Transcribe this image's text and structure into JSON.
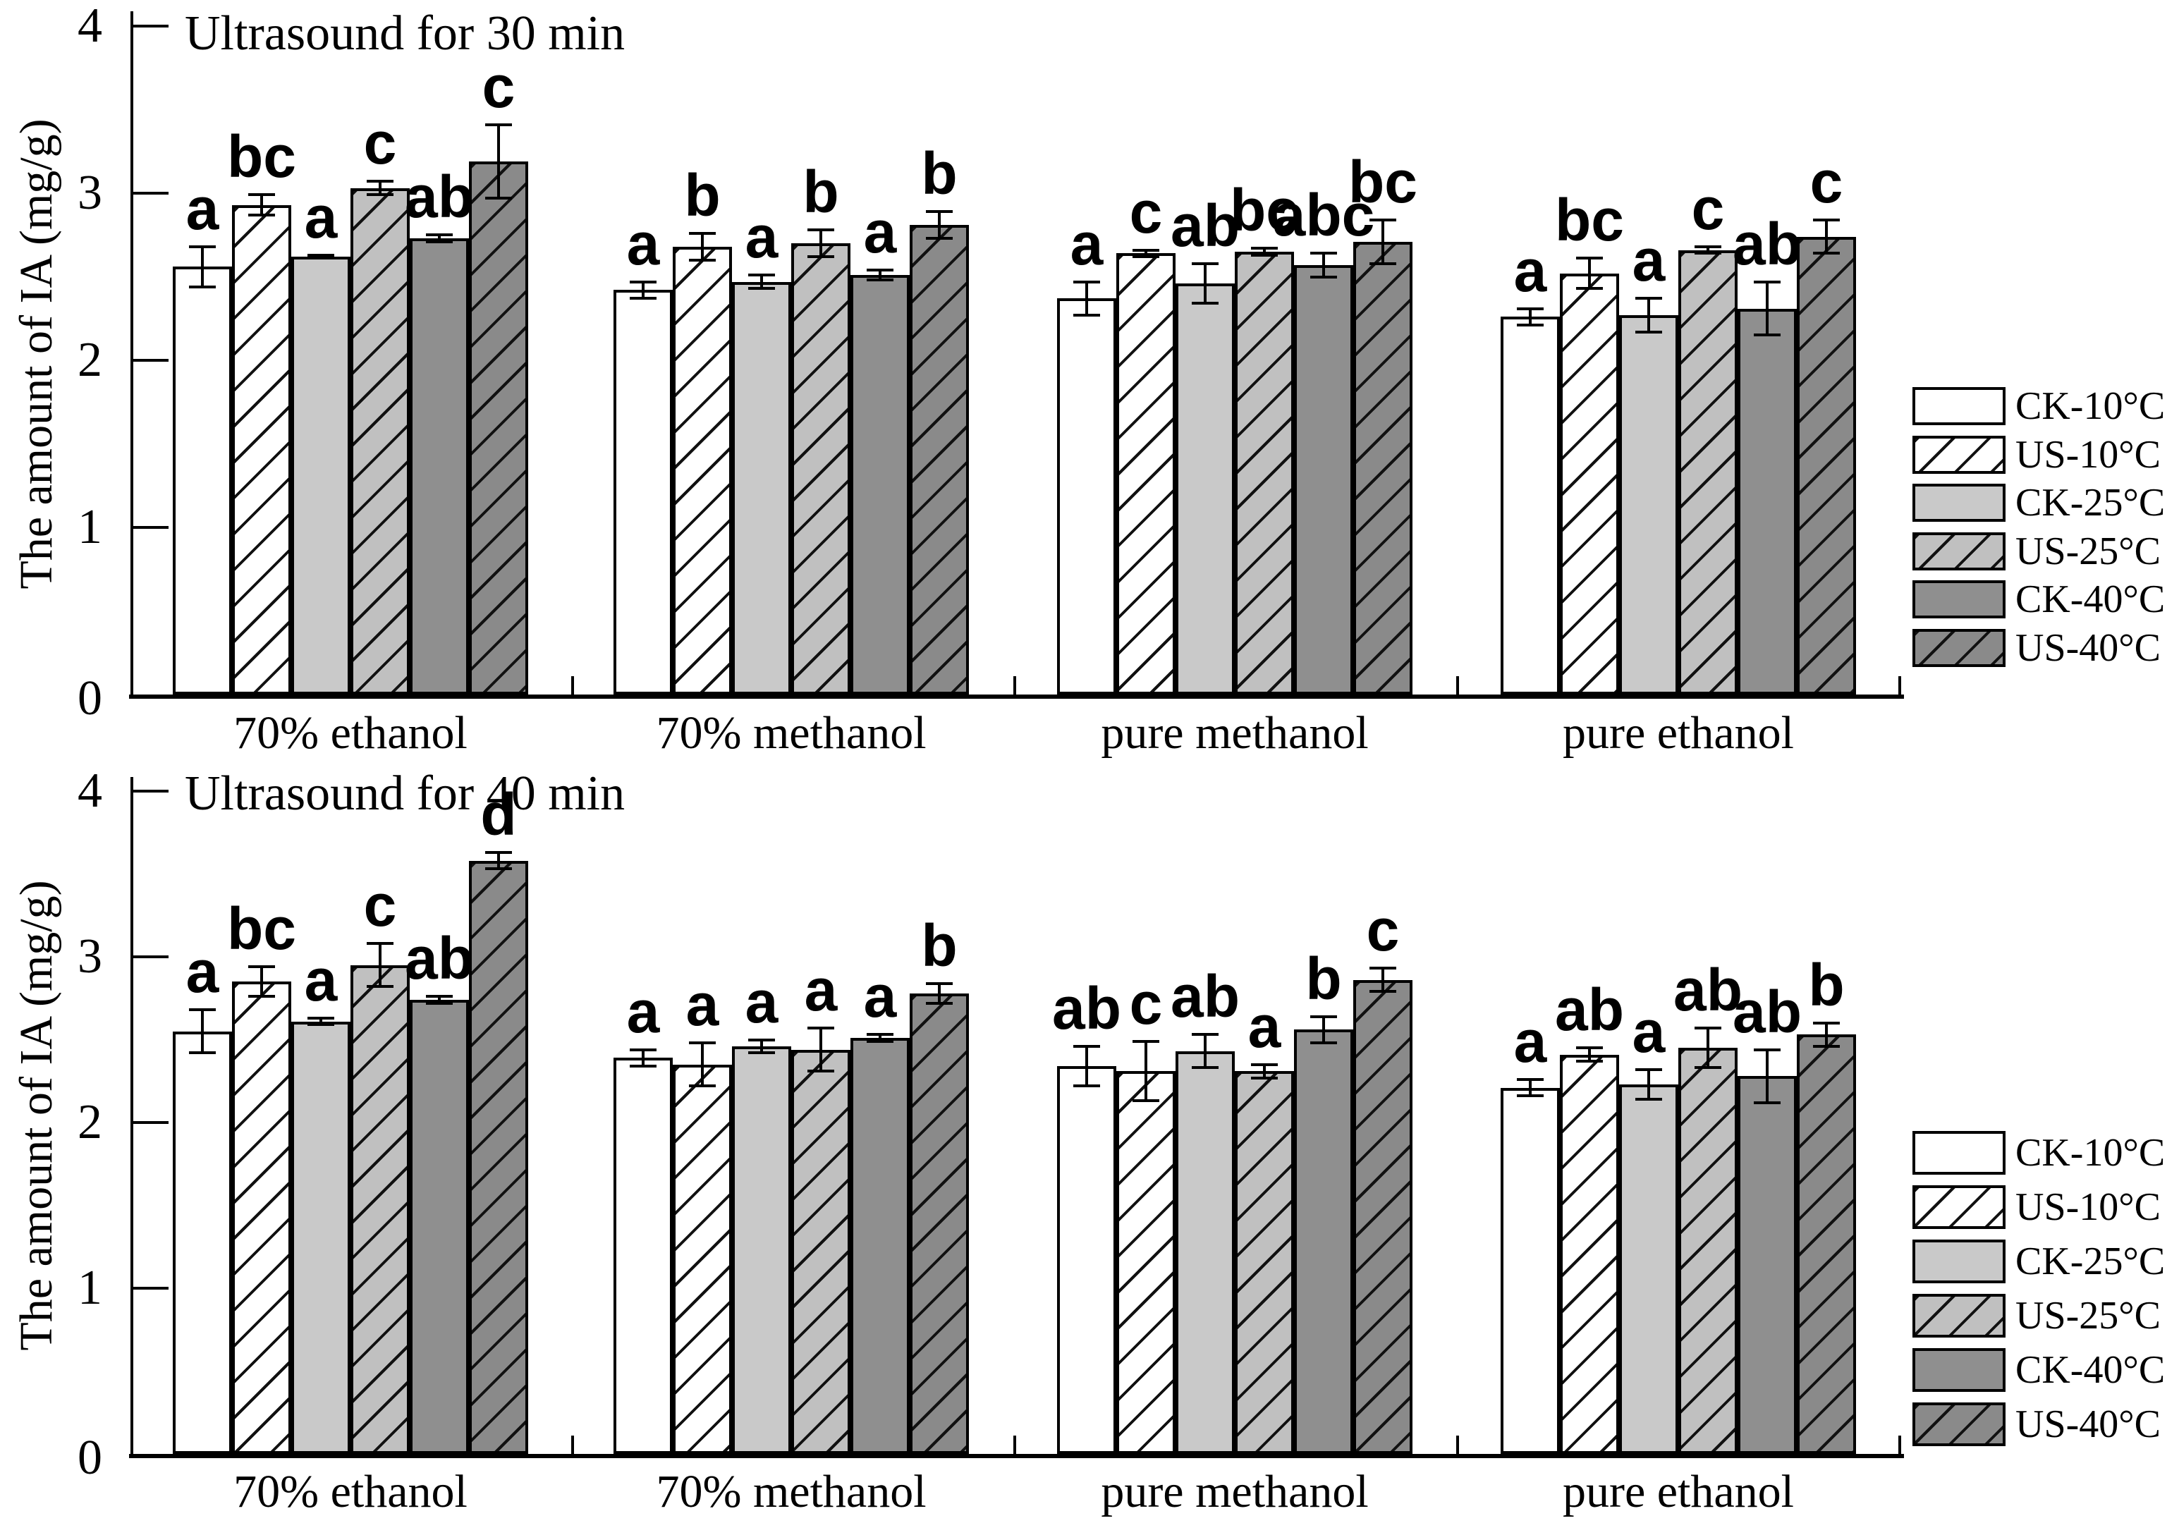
{
  "figure": {
    "background": "#ffffff",
    "axis_color": "#000000",
    "text_color": "#000000"
  },
  "chart_data": [
    {
      "type": "bar",
      "panel": "top",
      "title": "Ultrasound for 30 min",
      "xlabel": "",
      "ylabel": "The amount of IA (mg/g)",
      "ylim": [
        0,
        4
      ],
      "yticks": [
        0,
        1,
        2,
        3,
        4
      ],
      "grid": false,
      "legend_position": "right",
      "categories": [
        "70% ethanol",
        "70% methanol",
        "pure methanol",
        "pure ethanol"
      ],
      "series": [
        {
          "name": "CK-10°C",
          "color": "#ffffff",
          "hatched": false,
          "values": [
            2.56,
            2.42,
            2.37,
            2.26
          ],
          "errors": [
            0.12,
            0.05,
            0.1,
            0.05
          ],
          "letters": [
            "a",
            "a",
            "a",
            "a"
          ]
        },
        {
          "name": "US-10°C",
          "color": "#ffffff",
          "hatched": true,
          "values": [
            2.93,
            2.68,
            2.64,
            2.52
          ],
          "errors": [
            0.06,
            0.08,
            0.02,
            0.09
          ],
          "letters": [
            "bc",
            "b",
            "c",
            "bc"
          ]
        },
        {
          "name": "CK-25°C",
          "color": "#c9c9c9",
          "hatched": false,
          "values": [
            2.62,
            2.47,
            2.46,
            2.27
          ],
          "errors": [
            0.01,
            0.04,
            0.12,
            0.1
          ],
          "letters": [
            "a",
            "a",
            "ab",
            "a"
          ]
        },
        {
          "name": "US-25°C",
          "color": "#c0c0c0",
          "hatched": true,
          "values": [
            3.03,
            2.7,
            2.65,
            2.66
          ],
          "errors": [
            0.04,
            0.08,
            0.02,
            0.02
          ],
          "letters": [
            "c",
            "b",
            "bc",
            "c"
          ]
        },
        {
          "name": "CK-40°C",
          "color": "#8f8f8f",
          "hatched": false,
          "values": [
            2.73,
            2.51,
            2.57,
            2.31
          ],
          "errors": [
            0.02,
            0.03,
            0.07,
            0.16
          ],
          "letters": [
            "ab",
            "a",
            "abc",
            "ab"
          ]
        },
        {
          "name": "US-40°C",
          "color": "#8a8a8a",
          "hatched": true,
          "values": [
            3.19,
            2.81,
            2.71,
            2.74
          ],
          "errors": [
            0.22,
            0.08,
            0.13,
            0.1
          ],
          "letters": [
            "c",
            "b",
            "bc",
            "c"
          ]
        }
      ]
    },
    {
      "type": "bar",
      "panel": "bottom",
      "title": "Ultrasound for 40 min",
      "xlabel": "",
      "ylabel": "The amount of IA (mg/g)",
      "ylim": [
        0,
        4
      ],
      "yticks": [
        0,
        1,
        2,
        3,
        4
      ],
      "grid": false,
      "legend_position": "right",
      "categories": [
        "70% ethanol",
        "70% methanol",
        "pure methanol",
        "pure ethanol"
      ],
      "series": [
        {
          "name": "CK-10°C",
          "color": "#ffffff",
          "hatched": false,
          "values": [
            2.55,
            2.39,
            2.34,
            2.21
          ],
          "errors": [
            0.13,
            0.05,
            0.12,
            0.05
          ],
          "letters": [
            "a",
            "a",
            "ab",
            "a"
          ]
        },
        {
          "name": "US-10°C",
          "color": "#ffffff",
          "hatched": true,
          "values": [
            2.85,
            2.35,
            2.31,
            2.41
          ],
          "errors": [
            0.09,
            0.13,
            0.18,
            0.04
          ],
          "letters": [
            "bc",
            "a",
            "c",
            "ab"
          ]
        },
        {
          "name": "CK-25°C",
          "color": "#c9c9c9",
          "hatched": false,
          "values": [
            2.61,
            2.46,
            2.43,
            2.23
          ],
          "errors": [
            0.02,
            0.04,
            0.1,
            0.09
          ],
          "letters": [
            "a",
            "a",
            "ab",
            "a"
          ]
        },
        {
          "name": "US-25°C",
          "color": "#c0c0c0",
          "hatched": true,
          "values": [
            2.95,
            2.44,
            2.31,
            2.45
          ],
          "errors": [
            0.13,
            0.13,
            0.04,
            0.12
          ],
          "letters": [
            "c",
            "a",
            "a",
            "ab"
          ]
        },
        {
          "name": "CK-40°C",
          "color": "#8f8f8f",
          "hatched": false,
          "values": [
            2.74,
            2.51,
            2.56,
            2.28
          ],
          "errors": [
            0.02,
            0.02,
            0.08,
            0.16
          ],
          "letters": [
            "ab",
            "a",
            "b",
            "ab"
          ]
        },
        {
          "name": "US-40°C",
          "color": "#8a8a8a",
          "hatched": true,
          "values": [
            3.58,
            2.78,
            2.86,
            2.53
          ],
          "errors": [
            0.05,
            0.06,
            0.07,
            0.07
          ],
          "letters": [
            "d",
            "b",
            "c",
            "b"
          ]
        }
      ]
    }
  ]
}
